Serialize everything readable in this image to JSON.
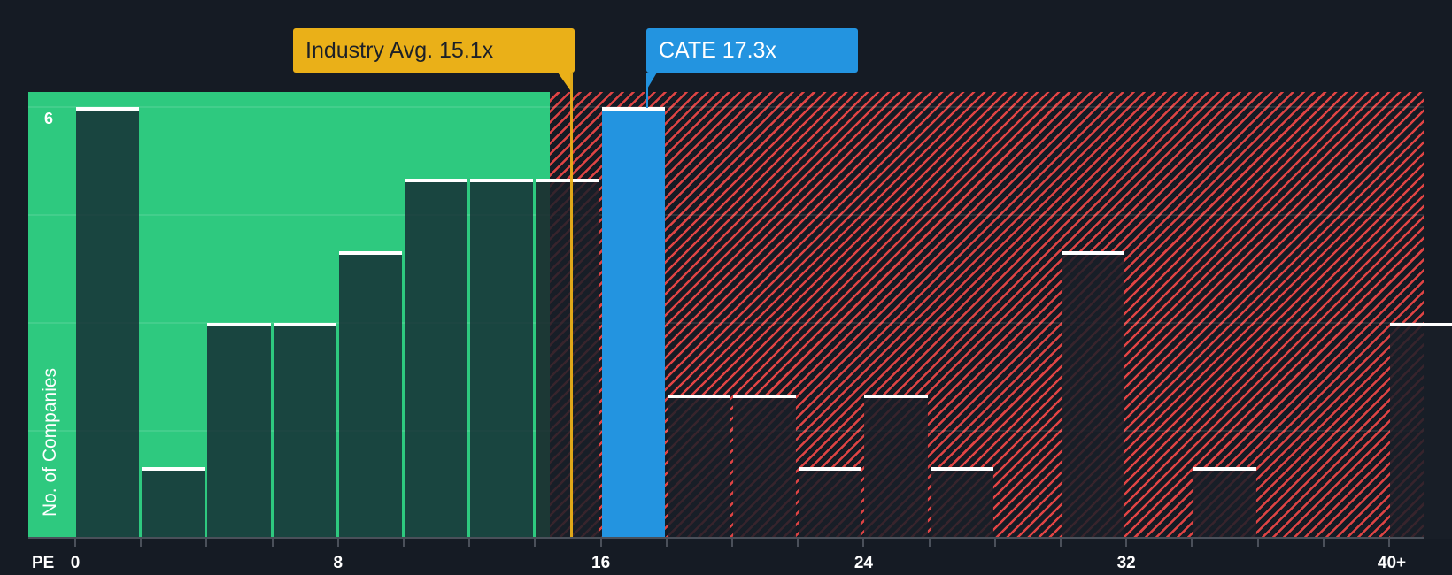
{
  "chart_data": {
    "type": "bar",
    "title": "",
    "xlabel": "PE",
    "ylabel": "No. of Companies",
    "x_tick_labels": [
      "0",
      "8",
      "16",
      "24",
      "32",
      "40+"
    ],
    "y_tick_labels": [
      "6"
    ],
    "ylim": [
      0,
      6
    ],
    "bin_width": 2,
    "categories": [
      "0-2",
      "2-4",
      "4-6",
      "6-8",
      "8-10",
      "10-12",
      "12-14",
      "14-16",
      "16-18",
      "18-20",
      "20-22",
      "22-24",
      "24-26",
      "26-28",
      "28-30",
      "30-32",
      "32-34",
      "34-36",
      "36-38",
      "38-40",
      "40+"
    ],
    "values": [
      6,
      1,
      3,
      3,
      4,
      5,
      5,
      5,
      6,
      2,
      2,
      1,
      2,
      1,
      0,
      4,
      0,
      1,
      0,
      0,
      3
    ],
    "highlight_bin": "16-18",
    "annotations": [
      {
        "label": "Industry Avg. 15.1x",
        "value": 15.1,
        "color": "#eab018"
      },
      {
        "label": "CATE 17.3x",
        "value": 17.3,
        "color": "#2394e0"
      }
    ],
    "regions": [
      {
        "name": "below-average",
        "to": 14.5,
        "color": "#2ec97f"
      },
      {
        "name": "above-average",
        "from": 14.5,
        "color": "#e04444",
        "pattern": "hatched"
      }
    ],
    "grid": true,
    "legend": "none"
  },
  "labels": {
    "pe": "PE",
    "y_axis": "No. of Companies",
    "y_top": "6",
    "industry_avg": "Industry Avg. 15.1x",
    "company": "CATE 17.3x"
  },
  "colors": {
    "background": "#151b24",
    "green_zone": "#2ec97f",
    "red_hatch": "#e04444",
    "industry": "#eab018",
    "company": "#2394e0"
  }
}
